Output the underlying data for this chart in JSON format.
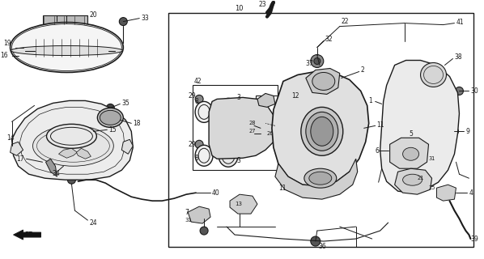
{
  "bg_color": "#ffffff",
  "line_color": "#1a1a1a",
  "lw": 0.7
}
